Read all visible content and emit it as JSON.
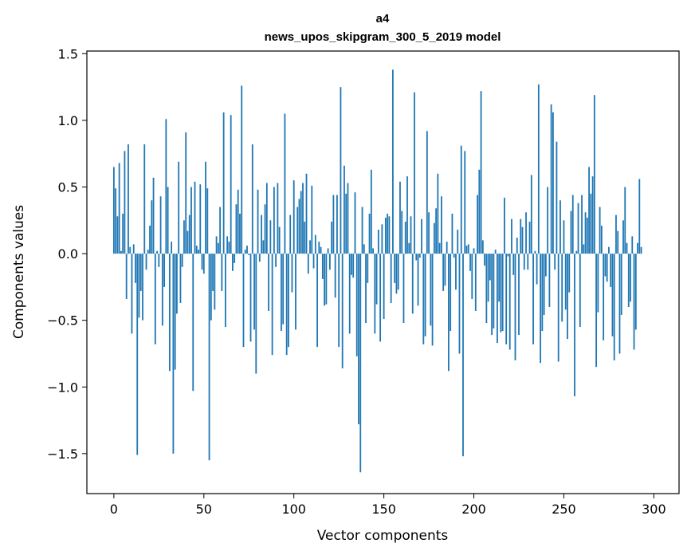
{
  "chart_data": {
    "type": "bar",
    "title": "a4",
    "subtitle": "news_upos_skipgram_300_5_2019 model",
    "xlabel": "Vector components",
    "ylabel": "Components values",
    "xlim": [
      -15,
      314
    ],
    "ylim": [
      -1.8,
      1.52
    ],
    "xticks": [
      0,
      50,
      100,
      150,
      200,
      250,
      300
    ],
    "yticks": [
      -1.5,
      -1.0,
      -0.5,
      0.0,
      0.5,
      1.0,
      1.5
    ],
    "ytick_labels": [
      "−1.5",
      "−1.0",
      "−0.5",
      "0.0",
      "0.5",
      "1.0",
      "1.5"
    ],
    "bar_color": "#1f77b4",
    "values": [
      0.65,
      0.49,
      0.28,
      0.68,
      0.02,
      0.3,
      0.77,
      -0.34,
      0.82,
      0.05,
      -0.6,
      0.07,
      -0.22,
      -1.51,
      -0.48,
      -0.28,
      -0.5,
      0.82,
      -0.12,
      0.03,
      0.21,
      0.4,
      0.57,
      -0.68,
      0.02,
      -0.1,
      0.43,
      -0.54,
      -0.25,
      1.01,
      0.5,
      -0.88,
      0.09,
      -1.5,
      -0.87,
      -0.45,
      0.69,
      -0.37,
      -0.1,
      0.25,
      0.91,
      0.17,
      0.29,
      0.5,
      -1.03,
      0.54,
      0.06,
      0.03,
      0.52,
      -0.12,
      -0.15,
      0.69,
      0.49,
      -1.55,
      -0.5,
      -0.28,
      -0.42,
      0.13,
      0.08,
      0.35,
      -0.28,
      1.06,
      -0.55,
      0.13,
      0.09,
      1.04,
      -0.13,
      -0.07,
      0.37,
      0.48,
      0.3,
      1.26,
      -0.7,
      0.03,
      0.06,
      -0.01,
      -0.66,
      0.82,
      -0.57,
      -0.9,
      0.48,
      -0.06,
      0.29,
      0.1,
      0.37,
      0.53,
      -0.43,
      0.25,
      -0.76,
      0.5,
      -0.1,
      0.53,
      0.2,
      -0.58,
      -0.53,
      1.05,
      -0.76,
      -0.7,
      0.29,
      -0.29,
      0.55,
      -0.57,
      0.35,
      0.41,
      0.47,
      0.53,
      0.24,
      0.6,
      -0.15,
      0.1,
      0.51,
      -0.11,
      0.14,
      -0.7,
      0.09,
      0.05,
      -0.19,
      -0.39,
      -0.38,
      0.04,
      -0.12,
      0.24,
      0.44,
      -0.33,
      0.44,
      -0.7,
      1.25,
      -0.86,
      0.66,
      0.45,
      0.53,
      -0.6,
      -0.16,
      -0.18,
      0.46,
      -0.77,
      -1.28,
      -1.64,
      0.35,
      0.07,
      -0.52,
      -0.22,
      0.3,
      0.63,
      0.04,
      -0.6,
      -0.38,
      0.18,
      -0.66,
      0.22,
      -0.49,
      0.27,
      0.3,
      0.28,
      -0.37,
      1.38,
      -0.22,
      -0.3,
      -0.27,
      0.54,
      0.32,
      -0.52,
      0.24,
      0.58,
      0.08,
      0.28,
      -0.45,
      1.21,
      -0.05,
      -0.39,
      -0.03,
      0.26,
      -0.68,
      -0.62,
      0.92,
      0.31,
      -0.54,
      -0.69,
      0.23,
      0.34,
      0.6,
      0.08,
      0.43,
      -0.28,
      -0.24,
      0.09,
      -0.88,
      -0.58,
      0.3,
      -0.03,
      -0.27,
      0.18,
      -0.75,
      0.81,
      -1.52,
      0.77,
      0.06,
      0.07,
      -0.13,
      -0.34,
      0.04,
      -0.43,
      0.44,
      0.63,
      1.22,
      0.1,
      -0.09,
      -0.52,
      -0.36,
      -0.2,
      -0.61,
      -0.56,
      0.03,
      -0.67,
      -0.36,
      -0.59,
      -0.58,
      0.42,
      -0.68,
      -0.02,
      -0.72,
      0.26,
      -0.16,
      -0.8,
      0.12,
      -0.61,
      0.26,
      0.2,
      -0.12,
      0.31,
      -0.12,
      0.24,
      0.59,
      -0.68,
      0.02,
      -0.23,
      1.27,
      -0.82,
      -0.58,
      -0.46,
      -0.17,
      0.5,
      -0.4,
      1.12,
      1.06,
      -0.12,
      0.84,
      -0.81,
      0.4,
      -0.51,
      0.25,
      -0.42,
      -0.64,
      -0.29,
      0.32,
      0.44,
      -1.07,
      0.02,
      0.38,
      -0.55,
      0.44,
      0.07,
      0.31,
      0.27,
      0.65,
      0.45,
      0.58,
      1.19,
      -0.85,
      -0.44,
      0.35,
      0.21,
      -0.65,
      -0.17,
      -0.21,
      0.05,
      -0.25,
      -0.62,
      -0.8,
      0.29,
      0.17,
      -0.75,
      -0.46,
      0.25,
      0.5,
      0.08,
      -0.4,
      -0.36,
      0.13,
      -0.72,
      -0.57,
      0.08,
      0.56,
      0.05
    ]
  }
}
